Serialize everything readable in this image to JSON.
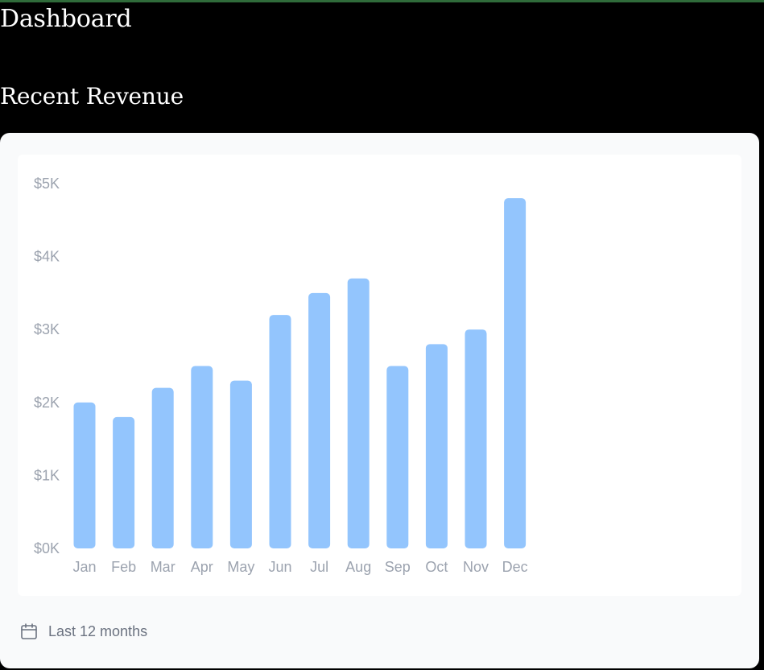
{
  "page": {
    "title": "Dashboard",
    "section_title": "Recent Revenue"
  },
  "colors": {
    "bar": "#93c5fd",
    "tick_text": "#9ca3af",
    "footer_text": "#6b7280",
    "card_bg": "#f9fafb",
    "chart_bg": "#ffffff"
  },
  "chart_data": {
    "type": "bar",
    "categories": [
      "Jan",
      "Feb",
      "Mar",
      "Apr",
      "May",
      "Jun",
      "Jul",
      "Aug",
      "Sep",
      "Oct",
      "Nov",
      "Dec"
    ],
    "values": [
      2000,
      1800,
      2200,
      2500,
      2300,
      3200,
      3500,
      3700,
      2500,
      2800,
      3000,
      4800
    ],
    "yticks": [
      0,
      1000,
      2000,
      3000,
      4000,
      5000
    ],
    "ytick_labels": [
      "$0K",
      "$1K",
      "$2K",
      "$3K",
      "$4K",
      "$5K"
    ],
    "ylim": [
      0,
      5000
    ],
    "title": "",
    "xlabel": "",
    "ylabel": "",
    "grid": false,
    "legend": "none"
  },
  "footer": {
    "icon": "calendar-icon",
    "label": "Last 12 months"
  }
}
